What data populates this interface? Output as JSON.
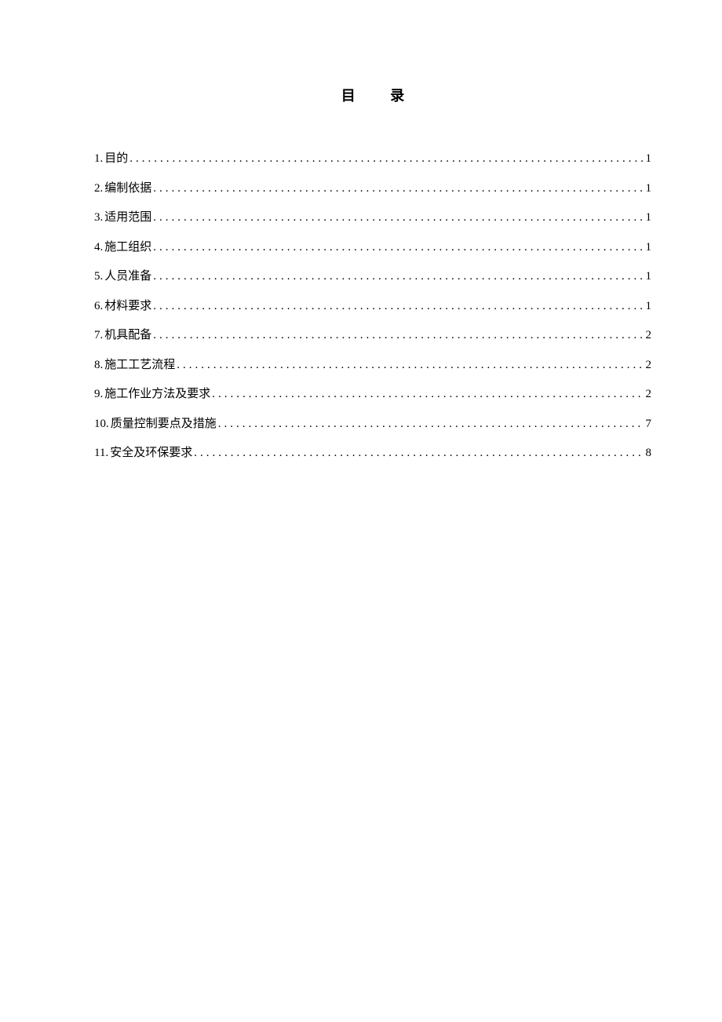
{
  "title": "目  录",
  "background_color": "#ffffff",
  "text_color": "#000000",
  "font_family": "SimSun",
  "title_fontsize": 18,
  "item_fontsize": 15,
  "line_height": 2.5,
  "toc": {
    "entries": [
      {
        "number": "1.",
        "label": "目的",
        "page": "1"
      },
      {
        "number": "2.",
        "label": "编制依据",
        "page": "1"
      },
      {
        "number": "3.",
        "label": "适用范围",
        "page": "1"
      },
      {
        "number": "4.",
        "label": "施工组织",
        "page": "1"
      },
      {
        "number": "5.",
        "label": "人员准备",
        "page": "1"
      },
      {
        "number": "6.",
        "label": "材料要求",
        "page": "1"
      },
      {
        "number": "7.",
        "label": "机具配备",
        "page": "2"
      },
      {
        "number": "8.",
        "label": "施工工艺流程",
        "page": "2"
      },
      {
        "number": "9.",
        "label": "施工作业方法及要求",
        "page": "2"
      },
      {
        "number": "10.",
        "label": "质量控制要点及措施",
        "page": "7"
      },
      {
        "number": "11.",
        "label": "安全及环保要求",
        "page": "8"
      }
    ]
  }
}
